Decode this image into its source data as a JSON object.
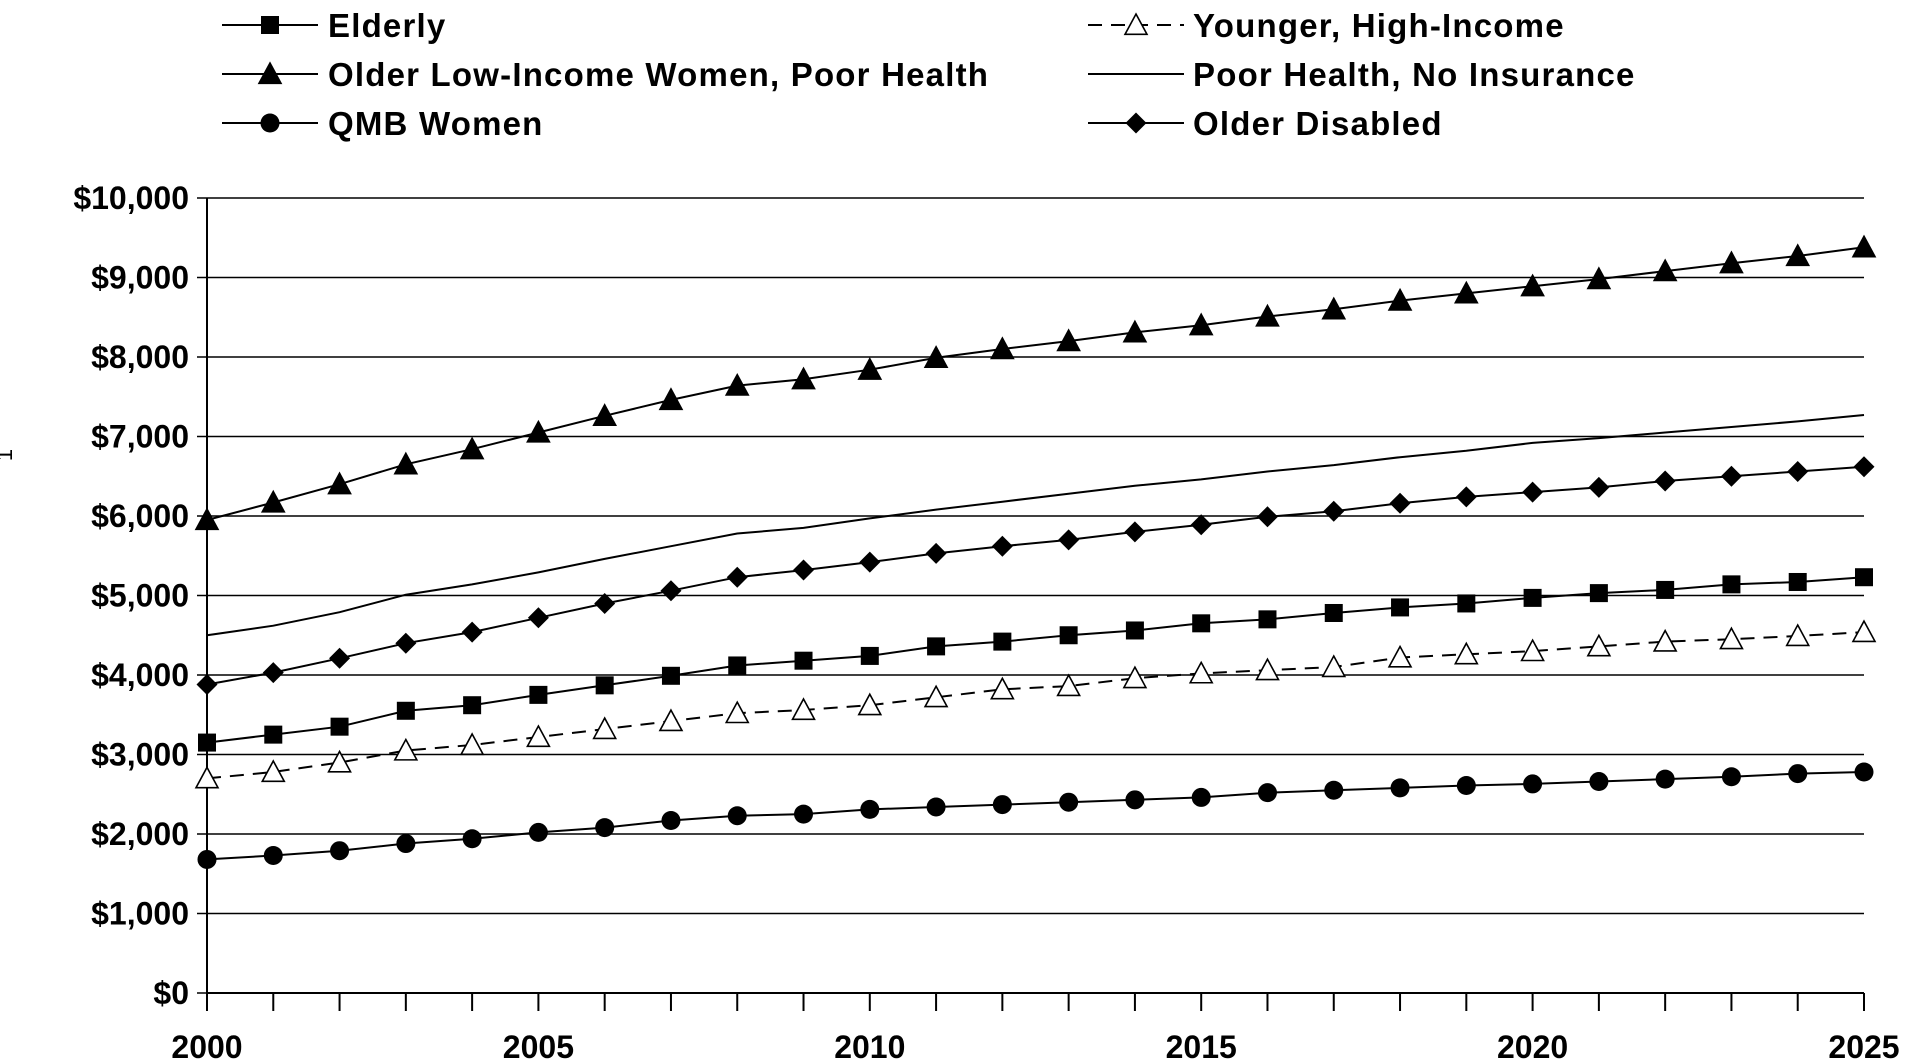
{
  "chart_data": {
    "type": "line",
    "title": "",
    "xlabel": "",
    "ylabel": "1",
    "xlim": [
      2000,
      2025
    ],
    "ylim": [
      0,
      10000
    ],
    "yticks": [
      0,
      1000,
      2000,
      3000,
      4000,
      5000,
      6000,
      7000,
      8000,
      9000,
      10000
    ],
    "ytick_labels": [
      "$0",
      "$1,000",
      "$2,000",
      "$3,000",
      "$4,000",
      "$5,000",
      "$6,000",
      "$7,000",
      "$8,000",
      "$9,000",
      "$10,000"
    ],
    "xticks": [
      2000,
      2005,
      2010,
      2015,
      2020,
      2025
    ],
    "xtick_labels": [
      "2000",
      "2005",
      "2010",
      "2015",
      "2020",
      "2025"
    ],
    "grid": "horizontal",
    "legend_position": "top",
    "x": [
      2000,
      2001,
      2002,
      2003,
      2004,
      2005,
      2006,
      2007,
      2008,
      2009,
      2010,
      2011,
      2012,
      2013,
      2014,
      2015,
      2016,
      2017,
      2018,
      2019,
      2020,
      2021,
      2022,
      2023,
      2024,
      2025
    ],
    "series": [
      {
        "name": "Elderly",
        "marker": "square",
        "dash": "solid",
        "values": [
          3150,
          3250,
          3350,
          3550,
          3620,
          3750,
          3870,
          3990,
          4120,
          4180,
          4240,
          4360,
          4420,
          4500,
          4560,
          4650,
          4700,
          4780,
          4850,
          4900,
          4970,
          5030,
          5070,
          5140,
          5170,
          5230
        ]
      },
      {
        "name": "Younger, High-Income",
        "marker": "open-triangle",
        "dash": "dashed",
        "values": [
          2700,
          2780,
          2900,
          3050,
          3120,
          3220,
          3320,
          3420,
          3520,
          3560,
          3620,
          3720,
          3820,
          3860,
          3960,
          4020,
          4060,
          4100,
          4220,
          4260,
          4300,
          4360,
          4420,
          4450,
          4490,
          4540
        ]
      },
      {
        "name": "Older Low-Income Women, Poor Health",
        "marker": "filled-triangle",
        "dash": "solid",
        "values": [
          5950,
          6170,
          6400,
          6650,
          6840,
          7050,
          7260,
          7460,
          7640,
          7720,
          7840,
          7990,
          8100,
          8200,
          8310,
          8400,
          8510,
          8600,
          8710,
          8800,
          8890,
          8980,
          9080,
          9180,
          9270,
          9380
        ]
      },
      {
        "name": "Poor Health, No Insurance",
        "marker": "none",
        "dash": "solid",
        "values": [
          4500,
          4620,
          4790,
          5010,
          5140,
          5290,
          5460,
          5620,
          5780,
          5850,
          5970,
          6080,
          6180,
          6280,
          6380,
          6460,
          6560,
          6640,
          6740,
          6820,
          6920,
          6980,
          7050,
          7120,
          7190,
          7270
        ]
      },
      {
        "name": "QMB Women",
        "marker": "circle",
        "dash": "solid",
        "values": [
          1680,
          1730,
          1790,
          1880,
          1940,
          2020,
          2080,
          2170,
          2230,
          2250,
          2310,
          2340,
          2370,
          2400,
          2430,
          2460,
          2520,
          2550,
          2580,
          2610,
          2630,
          2660,
          2690,
          2720,
          2760,
          2780
        ]
      },
      {
        "name": "Older Disabled",
        "marker": "diamond",
        "dash": "solid",
        "values": [
          3880,
          4030,
          4210,
          4400,
          4540,
          4720,
          4900,
          5060,
          5230,
          5320,
          5420,
          5530,
          5620,
          5700,
          5800,
          5890,
          5990,
          6060,
          6160,
          6240,
          6300,
          6360,
          6440,
          6500,
          6560,
          6620
        ]
      }
    ],
    "colors": {
      "lines": "#000000",
      "grid": "#000000",
      "background": "#ffffff",
      "open_marker_fill": "#ffffff"
    }
  }
}
